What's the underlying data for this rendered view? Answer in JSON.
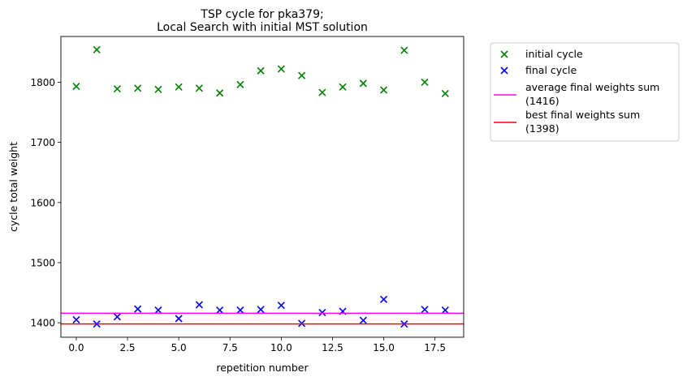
{
  "chart_data": {
    "type": "scatter",
    "title": [
      "TSP cycle for pka379;",
      "Local Search with initial MST solution"
    ],
    "xlabel": "repetition number",
    "ylabel": "cycle total weight",
    "xlim": [
      -0.75,
      18.9
    ],
    "ylim": [
      1376,
      1876
    ],
    "xticks": [
      0.0,
      2.5,
      5.0,
      7.5,
      10.0,
      12.5,
      15.0,
      17.5
    ],
    "xtick_labels": [
      "0.0",
      "2.5",
      "5.0",
      "7.5",
      "10.0",
      "12.5",
      "15.0",
      "17.5"
    ],
    "yticks": [
      1400,
      1500,
      1600,
      1700,
      1800
    ],
    "ytick_labels": [
      "1400",
      "1500",
      "1600",
      "1700",
      "1800"
    ],
    "grid": false,
    "legend_position": "outside-right",
    "x": [
      0,
      1,
      2,
      3,
      4,
      5,
      6,
      7,
      8,
      9,
      10,
      11,
      12,
      13,
      14,
      15,
      16,
      17,
      18
    ],
    "series": [
      {
        "name": "initial cycle",
        "marker": "x",
        "color": "#008000",
        "values": [
          1793,
          1854,
          1789,
          1790,
          1788,
          1792,
          1790,
          1782,
          1796,
          1819,
          1822,
          1811,
          1783,
          1792,
          1798,
          1787,
          1853,
          1800,
          1781
        ]
      },
      {
        "name": "final cycle",
        "marker": "x",
        "color": "#0000ff",
        "values": [
          1405,
          1398,
          1410,
          1423,
          1421,
          1407,
          1430,
          1421,
          1421,
          1422,
          1429,
          1399,
          1417,
          1419,
          1404,
          1439,
          1398,
          1422,
          1421
        ]
      }
    ],
    "hlines": [
      {
        "name": [
          "average final weights sum",
          "(1416)"
        ],
        "y": 1416,
        "color": "#ff00ff"
      },
      {
        "name": [
          "best final weights sum",
          "(1398)"
        ],
        "y": 1398,
        "color": "#ff0000"
      }
    ]
  }
}
